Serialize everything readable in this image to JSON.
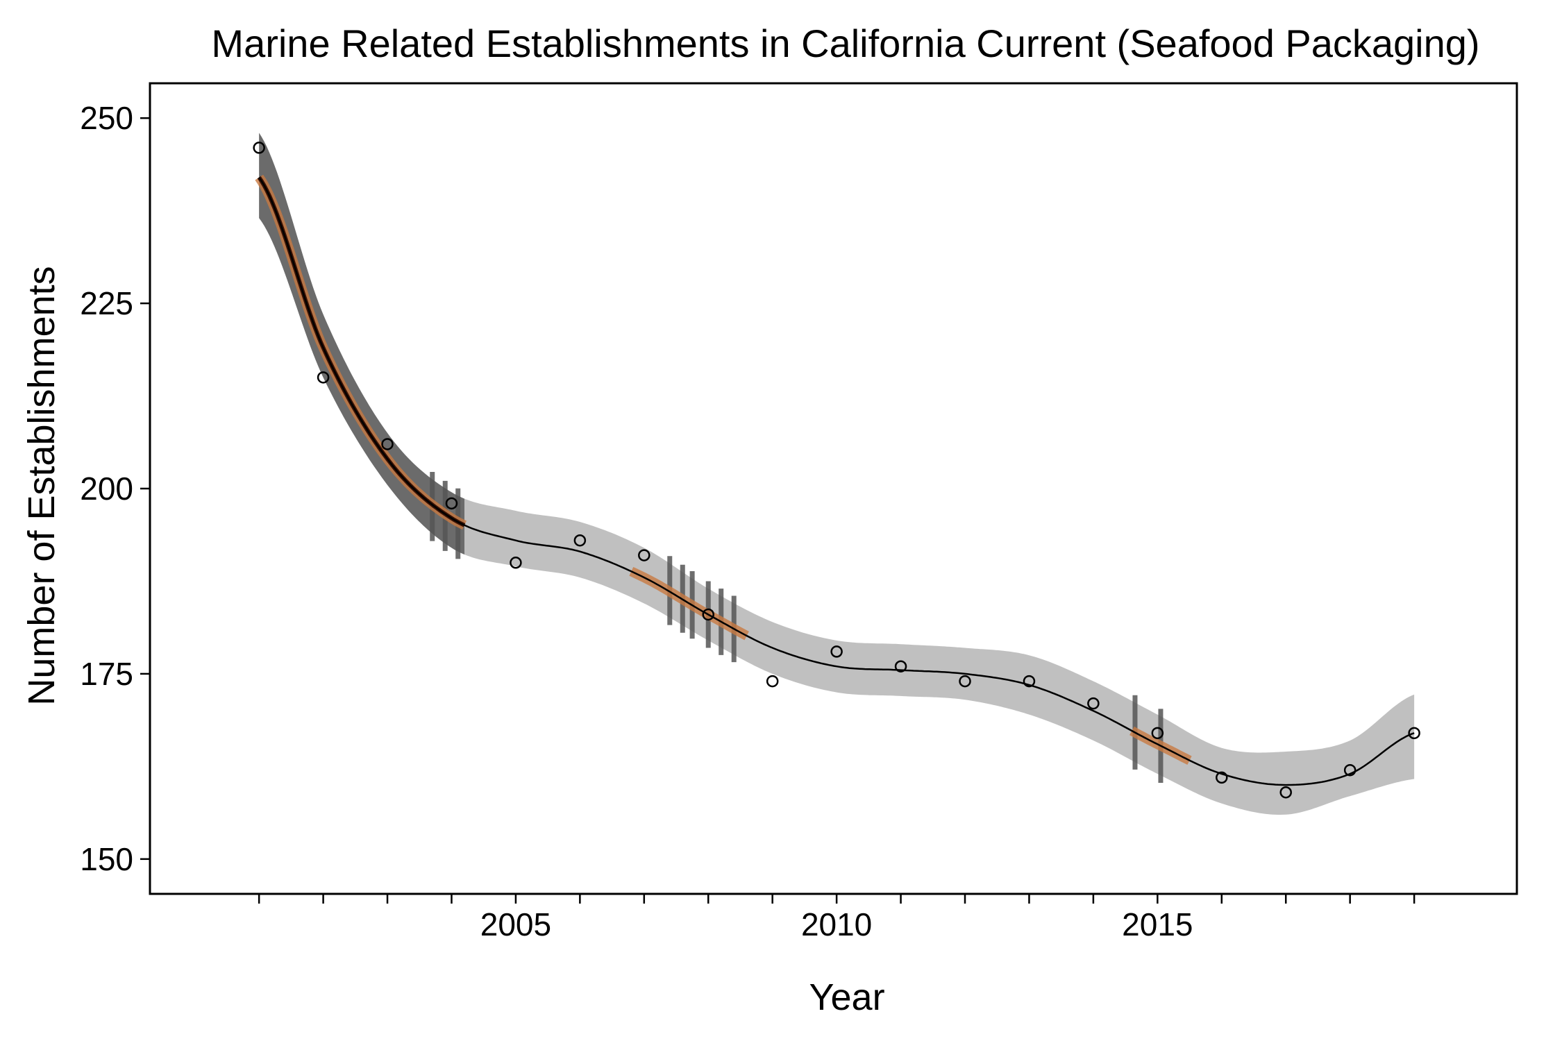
{
  "chart_data": {
    "type": "scatter",
    "title": "Marine Related Establishments in California Current (Seafood Packaging)",
    "xlabel": "Year",
    "ylabel": "Number of Establishments",
    "xlim": [
      1999.3,
      2020.6
    ],
    "ylim": [
      145.3,
      254.7
    ],
    "x_ticks": [
      2005,
      2010,
      2015
    ],
    "x_minor_ticks": [
      2001,
      2002,
      2003,
      2004,
      2006,
      2007,
      2008,
      2009,
      2011,
      2012,
      2013,
      2014,
      2016,
      2017,
      2018,
      2019
    ],
    "y_ticks": [
      150,
      175,
      200,
      225,
      250
    ],
    "grid": false,
    "legend": "none",
    "colors": {
      "points": "#000000",
      "trend_line": "#000000",
      "ribbon": "#c0c0c0",
      "highlight_ribbon": "#6b6b6b",
      "trend_segment": "#c87941",
      "trend_segment_core": "#3a1204",
      "breakpoint_line": "#555555"
    },
    "points": {
      "x": [
        2001,
        2002,
        2003,
        2004,
        2005,
        2006,
        2007,
        2008,
        2009,
        2010,
        2011,
        2012,
        2013,
        2014,
        2015,
        2016,
        2017,
        2018,
        2019
      ],
      "y": [
        246,
        215,
        206,
        198,
        190,
        193,
        191,
        183,
        174,
        178,
        176,
        174,
        174,
        171,
        167,
        161,
        159,
        162,
        167
      ]
    },
    "trend": {
      "x": [
        2001,
        2002,
        2003,
        2004,
        2005,
        2006,
        2007,
        2008,
        2009,
        2010,
        2011,
        2012,
        2013,
        2014,
        2015,
        2016,
        2017,
        2018,
        2019
      ],
      "y": [
        242,
        219,
        204,
        196,
        193,
        191.5,
        188,
        183,
        178.5,
        176,
        175.5,
        175,
        173.5,
        170,
        165.5,
        161.5,
        160,
        161.5,
        167
      ],
      "lower": [
        236.5,
        215,
        200.5,
        192,
        189.5,
        188,
        184.5,
        179.5,
        175,
        172.5,
        172,
        171.5,
        169.5,
        166,
        161.5,
        157.5,
        156,
        158.5,
        160.8
      ],
      "upper": [
        248,
        223.5,
        207.5,
        199.5,
        197,
        195.5,
        192,
        186.5,
        182,
        179.5,
        179,
        178.5,
        177.5,
        174,
        169.5,
        165,
        164.5,
        166,
        172.2
      ]
    },
    "highlighted_segments": [
      {
        "x_start": 2001,
        "x_end": 2004.2,
        "direction": "decreasing"
      },
      {
        "x_start": 2006.8,
        "x_end": 2008.6,
        "direction": "decreasing"
      },
      {
        "x_start": 2014.6,
        "x_end": 2015.5,
        "direction": "decreasing"
      }
    ],
    "breakpoints": [
      2003.7,
      2003.9,
      2004.1,
      2007.4,
      2007.6,
      2007.75,
      2008.0,
      2008.2,
      2008.4,
      2014.65,
      2015.05
    ]
  }
}
